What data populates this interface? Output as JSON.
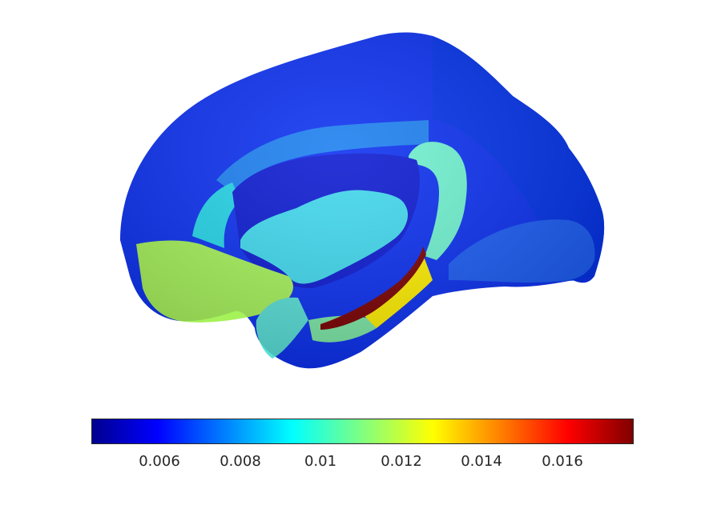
{
  "figure": {
    "colormap": "jet",
    "colormap_stops": [
      "#00008f",
      "#0000ff",
      "#00ffff",
      "#80ff80",
      "#ffff00",
      "#ff0000",
      "#800000"
    ]
  },
  "colorbar": {
    "ticks": [
      {
        "value": 0.006,
        "label": "0.006"
      },
      {
        "value": 0.008,
        "label": "0.008"
      },
      {
        "value": 0.01,
        "label": "0.01"
      },
      {
        "value": 0.012,
        "label": "0.012"
      },
      {
        "value": 0.014,
        "label": "0.014"
      },
      {
        "value": 0.016,
        "label": "0.016"
      }
    ]
  }
}
